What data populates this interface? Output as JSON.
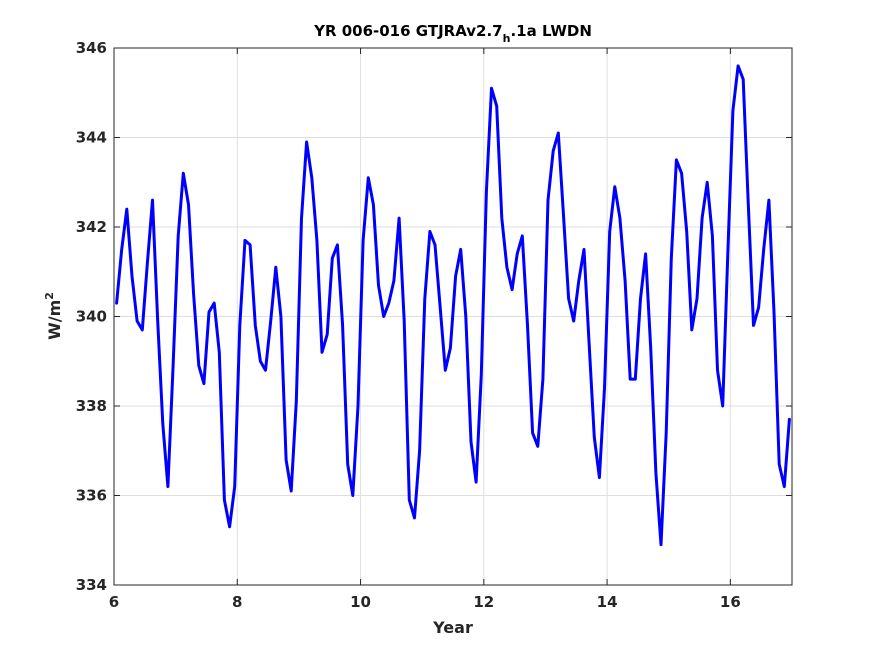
{
  "chart_data": {
    "type": "line",
    "title_main": "YR 006-016 GTJRAv2.7",
    "title_sub": "h",
    "title_end": ".1a LWDN",
    "xlabel": "Year",
    "ylabel_base": "W/m",
    "ylabel_sup": "2",
    "xlim": [
      6,
      17
    ],
    "ylim": [
      334,
      346
    ],
    "xticks": [
      6,
      8,
      10,
      12,
      14,
      16
    ],
    "yticks": [
      334,
      336,
      338,
      340,
      342,
      344,
      346
    ],
    "grid": true,
    "line_color": "#0000ff",
    "x_start": 6.0417,
    "x_step": 0.083333,
    "values": [
      340.3,
      341.5,
      342.4,
      340.9,
      339.9,
      339.7,
      341.2,
      342.6,
      339.9,
      337.6,
      336.2,
      338.9,
      341.8,
      343.2,
      342.5,
      340.5,
      338.9,
      338.5,
      340.1,
      340.3,
      339.2,
      335.9,
      335.3,
      336.2,
      339.8,
      341.7,
      341.6,
      339.8,
      339.0,
      338.8,
      339.9,
      341.1,
      340.0,
      336.8,
      336.1,
      338.1,
      342.2,
      343.9,
      343.1,
      341.7,
      339.2,
      339.6,
      341.3,
      341.6,
      339.8,
      336.7,
      336.0,
      338.0,
      341.7,
      343.1,
      342.5,
      340.7,
      340.0,
      340.3,
      340.8,
      342.2,
      339.9,
      335.9,
      335.5,
      337.0,
      340.4,
      341.9,
      341.6,
      340.2,
      338.8,
      339.3,
      340.9,
      341.5,
      340.0,
      337.2,
      336.3,
      338.7,
      342.8,
      345.1,
      344.7,
      342.2,
      341.1,
      340.6,
      341.4,
      341.8,
      339.8,
      337.4,
      337.1,
      338.6,
      342.6,
      343.7,
      344.1,
      342.3,
      340.4,
      339.9,
      340.8,
      341.5,
      339.4,
      337.3,
      336.4,
      338.4,
      341.9,
      342.9,
      342.2,
      340.8,
      338.6,
      338.6,
      340.4,
      341.4,
      339.3,
      336.5,
      334.9,
      337.4,
      341.3,
      343.5,
      343.2,
      341.9,
      339.7,
      340.4,
      342.2,
      343.0,
      341.8,
      338.8,
      338.0,
      341.4,
      344.6,
      345.6,
      345.3,
      342.5,
      339.8,
      340.2,
      341.5,
      342.6,
      340.1,
      336.7,
      336.2,
      337.7
    ]
  }
}
